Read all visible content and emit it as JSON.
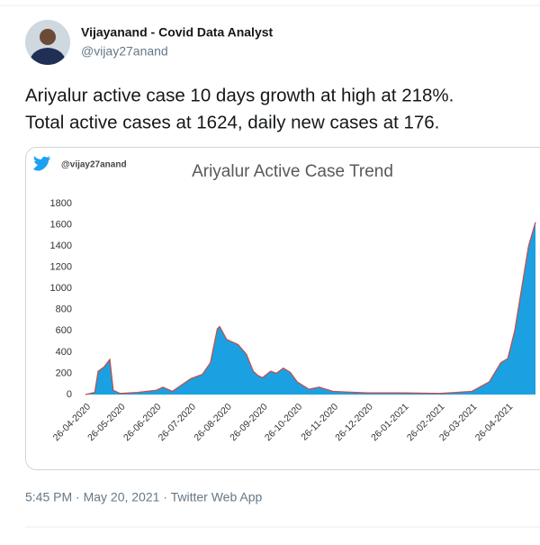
{
  "author": {
    "name": "Vijayanand - Covid Data Analyst",
    "handle": "@vijay27anand"
  },
  "text": [
    "Ariyalur active case 10 days growth at high at 218%.",
    "Total active cases at 1624, daily new cases at 176."
  ],
  "footer": "5:45 PM · May 20, 2021 · Twitter Web App",
  "chart_data": {
    "type": "area",
    "title": "Ariyalur Active Case Trend",
    "watermark": "@vijay27anand",
    "x": [
      "26-04-2020",
      "04-05-2020",
      "07-05-2020",
      "12-05-2020",
      "17-05-2020",
      "20-05-2020",
      "26-05-2020",
      "10-06-2020",
      "26-06-2020",
      "02-07-2020",
      "10-07-2020",
      "18-07-2020",
      "26-07-2020",
      "05-08-2020",
      "12-08-2020",
      "18-08-2020",
      "20-08-2020",
      "26-08-2020",
      "05-09-2020",
      "12-09-2020",
      "18-09-2020",
      "22-09-2020",
      "26-09-2020",
      "03-10-2020",
      "08-10-2020",
      "14-10-2020",
      "20-10-2020",
      "26-10-2020",
      "05-11-2020",
      "14-11-2020",
      "26-11-2020",
      "26-12-2020",
      "26-01-2021",
      "26-02-2021",
      "26-03-2021",
      "10-04-2021",
      "20-04-2021",
      "26-04-2021",
      "02-05-2021",
      "08-05-2021",
      "14-05-2021",
      "20-05-2021"
    ],
    "values": [
      0,
      20,
      220,
      260,
      330,
      40,
      10,
      20,
      40,
      70,
      30,
      90,
      150,
      190,
      300,
      620,
      640,
      520,
      470,
      380,
      220,
      180,
      160,
      220,
      200,
      250,
      210,
      120,
      50,
      70,
      30,
      15,
      15,
      10,
      30,
      120,
      300,
      340,
      600,
      1000,
      1400,
      1624
    ],
    "color": "#1ba1e2",
    "line_color": "#c0504d",
    "xlim": [
      "26-04-2020",
      "20-05-2021"
    ],
    "xticks": [
      "26-04-2020",
      "26-05-2020",
      "26-06-2020",
      "26-07-2020",
      "26-08-2020",
      "26-09-2020",
      "26-10-2020",
      "26-11-2020",
      "26-12-2020",
      "26-01-2021",
      "26-02-2021",
      "26-03-2021",
      "26-04-2021"
    ],
    "ylim": [
      0,
      1800
    ],
    "yticks": [
      0,
      200,
      400,
      600,
      800,
      1000,
      1200,
      1400,
      1600,
      1800
    ]
  }
}
